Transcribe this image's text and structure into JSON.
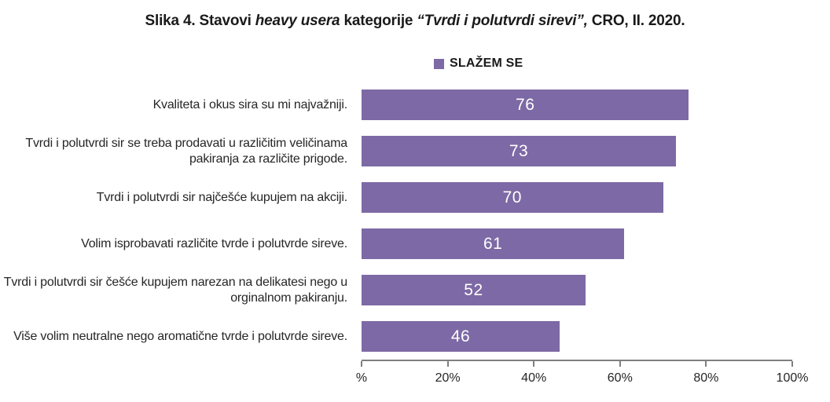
{
  "title": {
    "part1": "Slika 4. Stavovi ",
    "part2_italic": "heavy usera",
    "part3": " kategorije ",
    "part4_italic": "“Tvrdi i polutvrdi sirevi”,",
    "part5": " CRO, II. 2020."
  },
  "legend": {
    "label": "SLAŽEM SE",
    "color": "#7d69a5"
  },
  "chart_data": {
    "type": "bar",
    "orientation": "horizontal",
    "title": "Slika 4. Stavovi heavy usera kategorije “Tvrdi i polutvrdi sirevi”, CRO, II. 2020.",
    "series_name": "SLAŽEM SE",
    "categories": [
      "Kvaliteta i okus sira su mi najvažniji.",
      "Tvrdi i polutvrdi sir se treba prodavati u različitim veličinama pakiranja za različite prigode.",
      "Tvrdi i polutvrdi sir najčešće kupujem na akciji.",
      "Volim isprobavati različite tvrde i polutvrde sireve.",
      "Tvrdi i polutvrdi sir češće kupujem narezan na delikatesi nego u orginalnom pakiranju.",
      "Više volim neutralne nego aromatične tvrde i polutvrde sireve."
    ],
    "values": [
      76,
      73,
      70,
      61,
      52,
      46
    ],
    "xlim": [
      0,
      100
    ],
    "x_tick_values": [
      0,
      20,
      40,
      60,
      80,
      100
    ],
    "x_tick_labels": [
      "%",
      "20%",
      "40%",
      "60%",
      "80%",
      "100%"
    ],
    "bar_color": "#7d69a5",
    "value_label_color": "#ffffff",
    "axis_color": "#7f7f7f",
    "legend_position": "top",
    "grid": false
  }
}
